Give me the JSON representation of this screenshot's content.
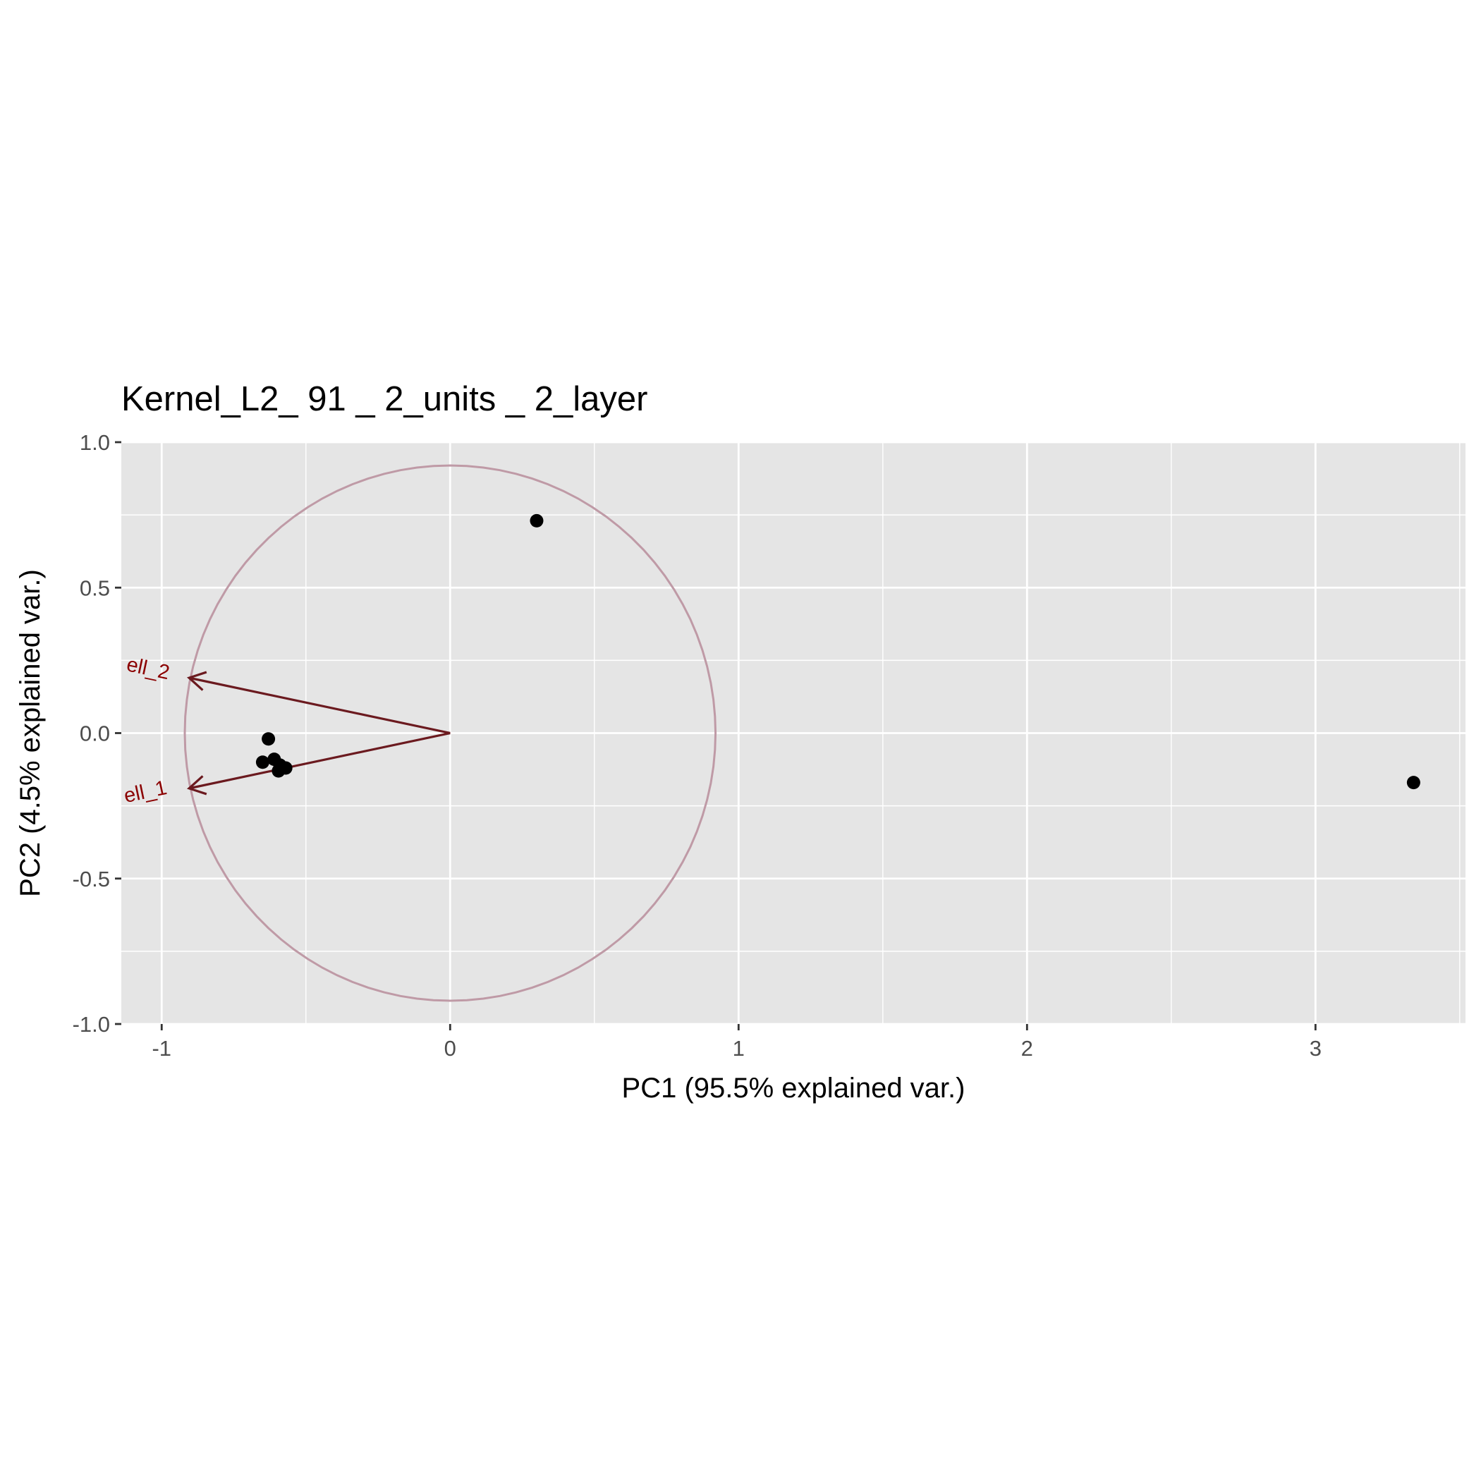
{
  "chart_data": {
    "type": "scatter",
    "title": "Kernel_L2_ 91 _ 2_units _ 2_layer",
    "xlabel": "PC1 (95.5% explained var.)",
    "ylabel": "PC2 (4.5% explained var.)",
    "xlim": [
      -1.14,
      3.52
    ],
    "ylim": [
      -1.0,
      1.0
    ],
    "x_ticks": [
      -1,
      0,
      1,
      2,
      3
    ],
    "x_tick_labels": [
      "-1",
      "0",
      "1",
      "2",
      "3"
    ],
    "y_ticks": [
      -1.0,
      -0.5,
      0.0,
      0.5,
      1.0
    ],
    "y_tick_labels": [
      "-1.0",
      "-0.5",
      "0.0",
      "0.5",
      "1.0"
    ],
    "grid": true,
    "points": [
      {
        "x": 0.3,
        "y": 0.73
      },
      {
        "x": -0.63,
        "y": -0.02
      },
      {
        "x": -0.65,
        "y": -0.1
      },
      {
        "x": -0.61,
        "y": -0.09
      },
      {
        "x": -0.59,
        "y": -0.11
      },
      {
        "x": -0.57,
        "y": -0.12
      },
      {
        "x": -0.595,
        "y": -0.13
      },
      {
        "x": 3.34,
        "y": -0.17
      }
    ],
    "loadings": [
      {
        "name": "ell_1",
        "x": -0.905,
        "y": -0.19
      },
      {
        "name": "ell_2",
        "x": -0.905,
        "y": 0.19
      }
    ],
    "circle_radius": 0.92,
    "colors": {
      "panel_background": "#e5e5e5",
      "grid": "#ffffff",
      "points": "#000000",
      "arrow": "#6b1a1f",
      "arrow_label": "#8b0000",
      "circle": "#bf9aa6",
      "tick_label": "#4d4d4d"
    }
  }
}
